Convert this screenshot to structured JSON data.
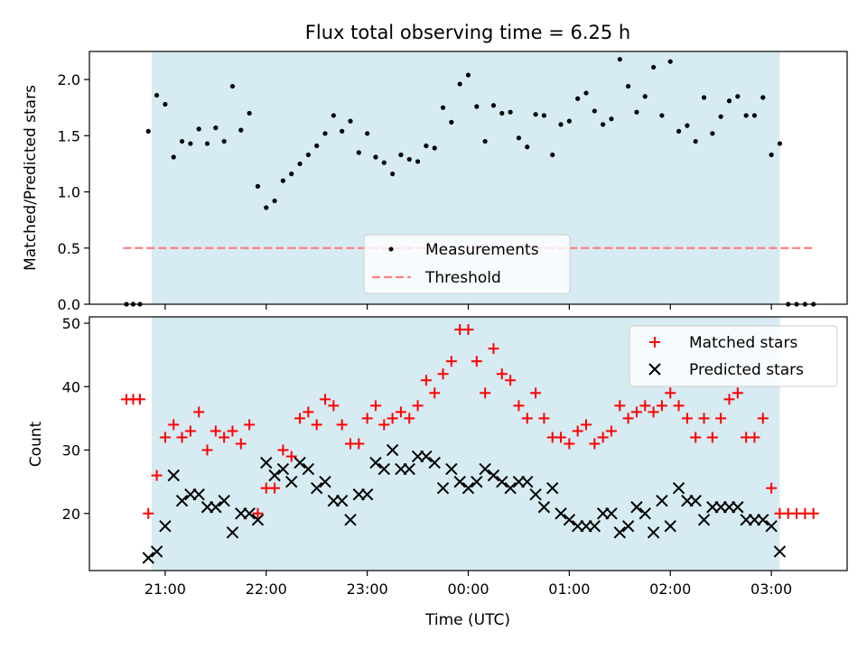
{
  "chart_data": [
    {
      "type": "scatter",
      "title": "Flux total observing time = 6.25 h",
      "xlabel": "",
      "ylabel": "Matched/Predicted stars",
      "xlim": [
        "20:15",
        "03:45"
      ],
      "ylim": [
        0,
        2.25
      ],
      "yticks": [
        "0.0",
        "0.5",
        "1.0",
        "1.5",
        "2.0"
      ],
      "shaded_span": [
        "20:52",
        "03:05"
      ],
      "grid": false,
      "legend_position": "bottom-center",
      "threshold": {
        "name": "Threshold",
        "value": 0.5,
        "x_range": [
          "20:35",
          "03:25"
        ],
        "color": "#ff7f7f"
      },
      "series": [
        {
          "name": "Measurements",
          "marker": "dot",
          "color": "#000000",
          "points": [
            [
              "20:37",
              0
            ],
            [
              "20:41",
              0
            ],
            [
              "20:45",
              0
            ],
            [
              "20:50",
              1.54
            ],
            [
              "20:55",
              1.86
            ],
            [
              "21:00",
              1.78
            ],
            [
              "21:05",
              1.31
            ],
            [
              "21:10",
              1.45
            ],
            [
              "21:15",
              1.43
            ],
            [
              "21:20",
              1.56
            ],
            [
              "21:25",
              1.43
            ],
            [
              "21:30",
              1.57
            ],
            [
              "21:35",
              1.45
            ],
            [
              "21:40",
              1.94
            ],
            [
              "21:45",
              1.55
            ],
            [
              "21:50",
              1.7
            ],
            [
              "21:55",
              1.05
            ],
            [
              "22:00",
              0.86
            ],
            [
              "22:05",
              0.92
            ],
            [
              "22:10",
              1.1
            ],
            [
              "22:15",
              1.16
            ],
            [
              "22:20",
              1.25
            ],
            [
              "22:25",
              1.33
            ],
            [
              "22:30",
              1.41
            ],
            [
              "22:35",
              1.52
            ],
            [
              "22:40",
              1.68
            ],
            [
              "22:45",
              1.54
            ],
            [
              "22:50",
              1.63
            ],
            [
              "22:55",
              1.35
            ],
            [
              "23:00",
              1.52
            ],
            [
              "23:05",
              1.31
            ],
            [
              "23:10",
              1.26
            ],
            [
              "23:15",
              1.16
            ],
            [
              "23:20",
              1.33
            ],
            [
              "23:25",
              1.29
            ],
            [
              "23:30",
              1.27
            ],
            [
              "23:35",
              1.41
            ],
            [
              "23:40",
              1.39
            ],
            [
              "23:45",
              1.75
            ],
            [
              "23:50",
              1.62
            ],
            [
              "23:55",
              1.96
            ],
            [
              "00:00",
              2.04
            ],
            [
              "00:05",
              1.76
            ],
            [
              "00:10",
              1.45
            ],
            [
              "00:15",
              1.77
            ],
            [
              "00:20",
              1.7
            ],
            [
              "00:25",
              1.71
            ],
            [
              "00:30",
              1.48
            ],
            [
              "00:35",
              1.4
            ],
            [
              "00:40",
              1.69
            ],
            [
              "00:45",
              1.68
            ],
            [
              "00:50",
              1.33
            ],
            [
              "00:55",
              1.6
            ],
            [
              "01:00",
              1.63
            ],
            [
              "01:05",
              1.83
            ],
            [
              "01:10",
              1.88
            ],
            [
              "01:15",
              1.72
            ],
            [
              "01:20",
              1.6
            ],
            [
              "01:25",
              1.65
            ],
            [
              "01:30",
              2.18
            ],
            [
              "01:35",
              1.94
            ],
            [
              "01:40",
              1.71
            ],
            [
              "01:45",
              1.85
            ],
            [
              "01:50",
              2.11
            ],
            [
              "01:55",
              1.68
            ],
            [
              "02:00",
              2.16
            ],
            [
              "02:05",
              1.54
            ],
            [
              "02:10",
              1.59
            ],
            [
              "02:15",
              1.45
            ],
            [
              "02:20",
              1.84
            ],
            [
              "02:25",
              1.52
            ],
            [
              "02:30",
              1.67
            ],
            [
              "02:35",
              1.81
            ],
            [
              "02:40",
              1.85
            ],
            [
              "02:45",
              1.68
            ],
            [
              "02:50",
              1.68
            ],
            [
              "02:55",
              1.84
            ],
            [
              "03:00",
              1.33
            ],
            [
              "03:05",
              1.43
            ],
            [
              "03:10",
              0
            ],
            [
              "03:15",
              0
            ],
            [
              "03:20",
              0
            ],
            [
              "03:25",
              0
            ]
          ]
        }
      ]
    },
    {
      "type": "scatter",
      "title": "",
      "xlabel": "Time (UTC)",
      "ylabel": "Count",
      "xlim": [
        "20:15",
        "03:45"
      ],
      "ylim": [
        11,
        51
      ],
      "xticks": [
        "21:00",
        "22:00",
        "23:00",
        "00:00",
        "01:00",
        "02:00",
        "03:00"
      ],
      "yticks": [
        "20",
        "30",
        "40",
        "50"
      ],
      "shaded_span": [
        "20:52",
        "03:05"
      ],
      "grid": false,
      "legend_position": "top-right",
      "series": [
        {
          "name": "Matched stars",
          "marker": "plus",
          "color": "#ff0000",
          "points": [
            [
              "20:37",
              38
            ],
            [
              "20:41",
              38
            ],
            [
              "20:45",
              38
            ],
            [
              "20:50",
              20
            ],
            [
              "20:55",
              26
            ],
            [
              "21:00",
              32
            ],
            [
              "21:05",
              34
            ],
            [
              "21:10",
              32
            ],
            [
              "21:15",
              33
            ],
            [
              "21:20",
              36
            ],
            [
              "21:25",
              30
            ],
            [
              "21:30",
              33
            ],
            [
              "21:35",
              32
            ],
            [
              "21:40",
              33
            ],
            [
              "21:45",
              31
            ],
            [
              "21:50",
              34
            ],
            [
              "21:55",
              20
            ],
            [
              "22:00",
              24
            ],
            [
              "22:05",
              24
            ],
            [
              "22:10",
              30
            ],
            [
              "22:15",
              29
            ],
            [
              "22:20",
              35
            ],
            [
              "22:25",
              36
            ],
            [
              "22:30",
              34
            ],
            [
              "22:35",
              38
            ],
            [
              "22:40",
              37
            ],
            [
              "22:45",
              34
            ],
            [
              "22:50",
              31
            ],
            [
              "22:55",
              31
            ],
            [
              "23:00",
              35
            ],
            [
              "23:05",
              37
            ],
            [
              "23:10",
              34
            ],
            [
              "23:15",
              35
            ],
            [
              "23:20",
              36
            ],
            [
              "23:25",
              35
            ],
            [
              "23:30",
              37
            ],
            [
              "23:35",
              41
            ],
            [
              "23:40",
              39
            ],
            [
              "23:45",
              42
            ],
            [
              "23:50",
              44
            ],
            [
              "23:55",
              49
            ],
            [
              "00:00",
              49
            ],
            [
              "00:05",
              44
            ],
            [
              "00:10",
              39
            ],
            [
              "00:15",
              46
            ],
            [
              "00:20",
              42
            ],
            [
              "00:25",
              41
            ],
            [
              "00:30",
              37
            ],
            [
              "00:35",
              35
            ],
            [
              "00:40",
              39
            ],
            [
              "00:45",
              35
            ],
            [
              "00:50",
              32
            ],
            [
              "00:55",
              32
            ],
            [
              "01:00",
              31
            ],
            [
              "01:05",
              33
            ],
            [
              "01:10",
              34
            ],
            [
              "01:15",
              31
            ],
            [
              "01:20",
              32
            ],
            [
              "01:25",
              33
            ],
            [
              "01:30",
              37
            ],
            [
              "01:35",
              35
            ],
            [
              "01:40",
              36
            ],
            [
              "01:45",
              37
            ],
            [
              "01:50",
              36
            ],
            [
              "01:55",
              37
            ],
            [
              "02:00",
              39
            ],
            [
              "02:05",
              37
            ],
            [
              "02:10",
              35
            ],
            [
              "02:15",
              32
            ],
            [
              "02:20",
              35
            ],
            [
              "02:25",
              32
            ],
            [
              "02:30",
              35
            ],
            [
              "02:35",
              38
            ],
            [
              "02:40",
              39
            ],
            [
              "02:45",
              32
            ],
            [
              "02:50",
              32
            ],
            [
              "02:55",
              35
            ],
            [
              "03:00",
              24
            ],
            [
              "03:05",
              20
            ],
            [
              "03:10",
              20
            ],
            [
              "03:15",
              20
            ],
            [
              "03:20",
              20
            ],
            [
              "03:25",
              20
            ]
          ]
        },
        {
          "name": "Predicted stars",
          "marker": "x",
          "color": "#000000",
          "points": [
            [
              "20:50",
              13
            ],
            [
              "20:55",
              14
            ],
            [
              "21:00",
              18
            ],
            [
              "21:05",
              26
            ],
            [
              "21:10",
              22
            ],
            [
              "21:15",
              23
            ],
            [
              "21:20",
              23
            ],
            [
              "21:25",
              21
            ],
            [
              "21:30",
              21
            ],
            [
              "21:35",
              22
            ],
            [
              "21:40",
              17
            ],
            [
              "21:45",
              20
            ],
            [
              "21:50",
              20
            ],
            [
              "21:55",
              19
            ],
            [
              "22:00",
              28
            ],
            [
              "22:05",
              26
            ],
            [
              "22:10",
              27
            ],
            [
              "22:15",
              25
            ],
            [
              "22:20",
              28
            ],
            [
              "22:25",
              27
            ],
            [
              "22:30",
              24
            ],
            [
              "22:35",
              25
            ],
            [
              "22:40",
              22
            ],
            [
              "22:45",
              22
            ],
            [
              "22:50",
              19
            ],
            [
              "22:55",
              23
            ],
            [
              "23:00",
              23
            ],
            [
              "23:05",
              28
            ],
            [
              "23:10",
              27
            ],
            [
              "23:15",
              30
            ],
            [
              "23:20",
              27
            ],
            [
              "23:25",
              27
            ],
            [
              "23:30",
              29
            ],
            [
              "23:35",
              29
            ],
            [
              "23:40",
              28
            ],
            [
              "23:45",
              24
            ],
            [
              "23:50",
              27
            ],
            [
              "23:55",
              25
            ],
            [
              "00:00",
              24
            ],
            [
              "00:05",
              25
            ],
            [
              "00:10",
              27
            ],
            [
              "00:15",
              26
            ],
            [
              "00:20",
              25
            ],
            [
              "00:25",
              24
            ],
            [
              "00:30",
              25
            ],
            [
              "00:35",
              25
            ],
            [
              "00:40",
              23
            ],
            [
              "00:45",
              21
            ],
            [
              "00:50",
              24
            ],
            [
              "00:55",
              20
            ],
            [
              "01:00",
              19
            ],
            [
              "01:05",
              18
            ],
            [
              "01:10",
              18
            ],
            [
              "01:15",
              18
            ],
            [
              "01:20",
              20
            ],
            [
              "01:25",
              20
            ],
            [
              "01:30",
              17
            ],
            [
              "01:35",
              18
            ],
            [
              "01:40",
              21
            ],
            [
              "01:45",
              20
            ],
            [
              "01:50",
              17
            ],
            [
              "01:55",
              22
            ],
            [
              "02:00",
              18
            ],
            [
              "02:05",
              24
            ],
            [
              "02:10",
              22
            ],
            [
              "02:15",
              22
            ],
            [
              "02:20",
              19
            ],
            [
              "02:25",
              21
            ],
            [
              "02:30",
              21
            ],
            [
              "02:35",
              21
            ],
            [
              "02:40",
              21
            ],
            [
              "02:45",
              19
            ],
            [
              "02:50",
              19
            ],
            [
              "02:55",
              19
            ],
            [
              "03:00",
              18
            ],
            [
              "03:05",
              14
            ]
          ]
        }
      ]
    }
  ],
  "colors": {
    "shade": "#add8e6",
    "matched": "#ff0000",
    "predicted": "#000000",
    "threshold": "#ff7f7f"
  }
}
